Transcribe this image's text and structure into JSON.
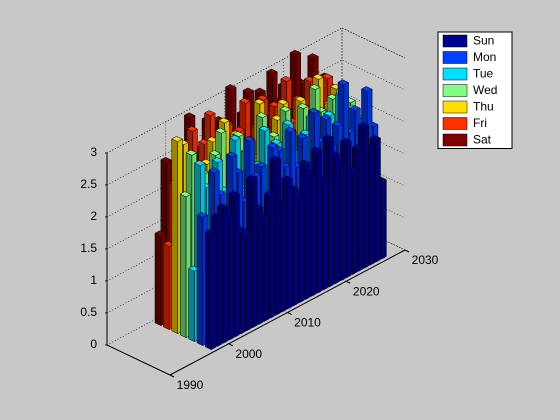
{
  "chart_data": {
    "type": "bar3",
    "x": [
      1998,
      1999,
      2000,
      2001,
      2002,
      2003,
      2004,
      2005,
      2006,
      2007,
      2008,
      2009,
      2010,
      2011,
      2012,
      2013,
      2014,
      2015,
      2016,
      2017,
      2018,
      2019,
      2020,
      2021,
      2022,
      2023,
      2024,
      2025,
      2026,
      2027
    ],
    "series": [
      {
        "name": "Sun",
        "color": "#00008f",
        "values": [
          1.8,
          2.0,
          2.1,
          1.9,
          2.2,
          1.6,
          1.5,
          2.3,
          1.8,
          1.6,
          1.9,
          2.4,
          1.7,
          2.0,
          1.8,
          1.6,
          2.1,
          1.9,
          2.2,
          1.7,
          2.3,
          2.0,
          1.8,
          2.1,
          1.6,
          1.9,
          2.2,
          1.8,
          1.9,
          1.2
        ]
      },
      {
        "name": "Mon",
        "color": "#0040ff",
        "values": [
          2.0,
          1.5,
          2.6,
          2.2,
          1.8,
          2.7,
          2.4,
          1.9,
          2.8,
          2.2,
          2.3,
          1.8,
          2.5,
          2.4,
          2.1,
          2.6,
          2.0,
          2.4,
          1.9,
          2.7,
          2.2,
          2.5,
          2.0,
          2.3,
          2.9,
          2.1,
          2.4,
          1.9,
          2.6,
          2.0
        ]
      },
      {
        "name": "Tue",
        "color": "#00dfff",
        "values": [
          1.1,
          2.7,
          2.3,
          1.8,
          2.6,
          2.1,
          1.7,
          2.8,
          2.0,
          2.5,
          1.9,
          2.2,
          2.7,
          1.8,
          2.4,
          2.0,
          2.6,
          2.1,
          1.9,
          2.3,
          2.5,
          1.7,
          2.2,
          2.4,
          2.0,
          2.6,
          1.8,
          2.3,
          2.1,
          1.9
        ]
      },
      {
        "name": "Wed",
        "color": "#80ff80",
        "values": [
          2.2,
          2.8,
          1.9,
          2.4,
          2.0,
          2.6,
          2.9,
          1.8,
          2.3,
          2.7,
          2.1,
          2.5,
          1.9,
          2.8,
          2.2,
          2.4,
          2.0,
          2.7,
          2.3,
          1.9,
          2.6,
          2.1,
          2.8,
          2.4,
          2.0,
          2.5,
          2.2,
          1.8,
          2.3,
          2.0
        ]
      },
      {
        "name": "Thu",
        "color": "#ffdf00",
        "values": [
          3.0,
          2.9,
          2.1,
          2.5,
          1.9,
          2.4,
          2.7,
          2.0,
          2.9,
          2.2,
          2.6,
          1.8,
          2.4,
          2.1,
          2.9,
          2.3,
          2.0,
          2.5,
          2.7,
          2.2,
          1.9,
          2.6,
          2.4,
          2.1,
          2.8,
          2.0,
          2.3,
          2.5,
          1.9,
          2.2
        ]
      },
      {
        "name": "Fri",
        "color": "#ff3000",
        "values": [
          1.3,
          2.2,
          1.9,
          2.4,
          2.9,
          2.1,
          2.6,
          3.0,
          2.3,
          2.0,
          2.7,
          2.2,
          2.5,
          2.9,
          2.1,
          2.4,
          2.8,
          2.0,
          2.6,
          2.3,
          2.9,
          2.2,
          2.5,
          2.1,
          2.7,
          2.4,
          2.0,
          2.6,
          2.3,
          2.2
        ]
      },
      {
        "name": "Sat",
        "color": "#800000",
        "values": [
          1.4,
          2.5,
          2.3,
          2.0,
          2.6,
          3.0,
          2.2,
          2.4,
          2.8,
          2.1,
          2.7,
          2.5,
          3.1,
          2.3,
          2.6,
          2.9,
          2.2,
          2.8,
          2.4,
          3.0,
          2.5,
          2.7,
          2.3,
          3.1,
          2.6,
          2.4,
          2.9,
          2.2,
          2.5,
          2.3
        ]
      }
    ],
    "xlim": [
      1990,
      2030
    ],
    "xticks": [
      1990,
      2000,
      2010,
      2020,
      2030
    ],
    "ylim": [
      0,
      3
    ],
    "yticks": [
      0,
      0.5,
      1,
      1.5,
      2,
      2.5,
      3
    ],
    "grid": true,
    "legend": "northeast"
  }
}
